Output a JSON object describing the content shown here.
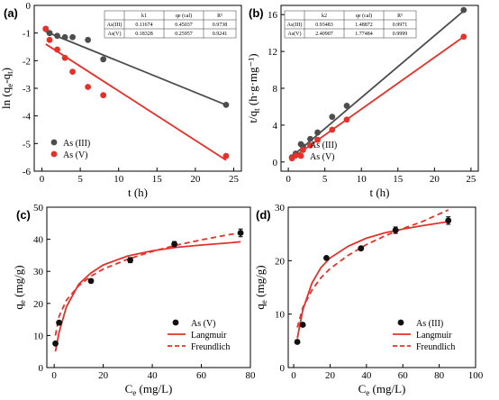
{
  "chart_data": [
    {
      "panel": "(a)",
      "type": "scatter",
      "xlabel_main": "t",
      "xlabel_unit": "(h)",
      "ylabel_main": "ln (q",
      "ylabel_sub1": "e",
      "ylabel_mid": "-q",
      "ylabel_sub2": "t",
      "ylabel_end": ")",
      "xlim": [
        -1,
        26
      ],
      "ylim": [
        -6,
        0
      ],
      "xticks": [
        0,
        5,
        10,
        15,
        20,
        25
      ],
      "yticks": [
        0,
        -1,
        -2,
        -3,
        -4,
        -5,
        -6
      ],
      "series": [
        {
          "name": "As (III)",
          "color": "#4d4d4d",
          "x": [
            0.5,
            1,
            2,
            3,
            4,
            6,
            8,
            24
          ],
          "y": [
            -0.85,
            -1.0,
            -1.1,
            -1.15,
            -1.15,
            -1.25,
            -1.95,
            -3.6
          ],
          "fit": {
            "x": [
              0.5,
              24
            ],
            "y": [
              -0.95,
              -3.6
            ]
          }
        },
        {
          "name": "As (V)",
          "color": "#e8302a",
          "x": [
            0.5,
            1,
            2,
            3,
            4,
            6,
            8,
            24
          ],
          "y": [
            -0.85,
            -1.25,
            -1.6,
            -1.9,
            -2.4,
            -2.95,
            -3.25,
            -5.45
          ],
          "fit": {
            "x": [
              0.5,
              24
            ],
            "y": [
              -1.4,
              -5.6
            ]
          }
        }
      ],
      "table": {
        "headers": [
          "",
          "k1",
          "qe (cal)",
          "R²"
        ],
        "rows": [
          [
            "As(III)",
            "0.11674",
            "0.45037",
            "0.9738"
          ],
          [
            "As(V)",
            "0.18328",
            "0.25957",
            "0.9241"
          ]
        ]
      }
    },
    {
      "panel": "(b)",
      "type": "scatter",
      "xlabel_main": "t",
      "xlabel_unit": "(h)",
      "ylabel_main": "t/q",
      "ylabel_sub1": "t",
      "ylabel_end": " (h·g·mg⁻¹)",
      "xlim": [
        -1,
        26
      ],
      "ylim": [
        -1,
        17
      ],
      "xticks": [
        0,
        5,
        10,
        15,
        20,
        25
      ],
      "yticks": [
        0,
        4,
        8,
        12,
        16
      ],
      "series": [
        {
          "name": "As (III)",
          "color": "#4d4d4d",
          "x": [
            0.5,
            1,
            2,
            3,
            4,
            6,
            8,
            24
          ],
          "y": [
            0.5,
            0.9,
            1.7,
            2.5,
            3.2,
            4.9,
            6.1,
            16.5
          ],
          "fit": {
            "x": [
              0.5,
              24
            ],
            "y": [
              0.6,
              16.4
            ]
          }
        },
        {
          "name": "As (V)",
          "color": "#e8302a",
          "x": [
            0.5,
            1,
            2,
            3,
            4,
            6,
            8,
            24
          ],
          "y": [
            0.4,
            0.7,
            1.3,
            1.8,
            2.4,
            3.5,
            4.6,
            13.6
          ],
          "fit": {
            "x": [
              0.5,
              24
            ],
            "y": [
              0.4,
              13.6
            ]
          }
        }
      ],
      "table": {
        "headers": [
          "",
          "k2",
          "qe (cal)",
          "R²"
        ],
        "rows": [
          [
            "As(III)",
            "0.93483",
            "1.48872",
            "0.9971"
          ],
          [
            "As(V)",
            "2.40907",
            "1.77484",
            "0.9999"
          ]
        ]
      }
    },
    {
      "panel": "(c)",
      "type": "scatter",
      "xlabel_main": "C",
      "xlabel_sub": "e",
      "xlabel_unit": " (mg/L)",
      "ylabel_main": "q",
      "ylabel_sub1": "e",
      "ylabel_end": " (mg/g)",
      "xlim": [
        -3,
        80
      ],
      "ylim": [
        0,
        50
      ],
      "xticks": [
        0,
        20,
        40,
        60,
        80
      ],
      "yticks": [
        0,
        10,
        20,
        30,
        40,
        50
      ],
      "points": {
        "name": "As (V)",
        "x": [
          0.5,
          2,
          15,
          31,
          49,
          76
        ],
        "y": [
          7.5,
          14,
          27,
          33.5,
          38.5,
          42
        ],
        "err": [
          0,
          0,
          0.6,
          0.8,
          0.8,
          1.2
        ]
      },
      "curves": [
        {
          "name": "Langmuir",
          "style": "solid",
          "color": "#e8302a",
          "x": [
            0.5,
            2,
            5,
            10,
            15,
            20,
            30,
            40,
            50,
            60,
            70,
            76
          ],
          "y": [
            5,
            11,
            19,
            26,
            29.5,
            32,
            34.8,
            36.4,
            37.5,
            38.2,
            38.8,
            39.2
          ]
        },
        {
          "name": "Freundlich",
          "style": "dashed",
          "color": "#e8302a",
          "x": [
            0.5,
            2,
            5,
            10,
            15,
            20,
            30,
            40,
            50,
            60,
            70,
            76
          ],
          "y": [
            10,
            16,
            21,
            25.5,
            28.5,
            30.7,
            33.8,
            36.2,
            38.2,
            39.8,
            41.3,
            42
          ]
        }
      ]
    },
    {
      "panel": "(d)",
      "type": "scatter",
      "xlabel_main": "C",
      "xlabel_sub": "e",
      "xlabel_unit": " (mg/L)",
      "ylabel_main": "q",
      "ylabel_sub1": "e",
      "ylabel_end": " (mg/g)",
      "xlim": [
        -3,
        100
      ],
      "ylim": [
        0,
        30
      ],
      "xticks": [
        0,
        20,
        40,
        60,
        80,
        100
      ],
      "yticks": [
        0,
        10,
        20,
        30
      ],
      "points": {
        "name": "As (III)",
        "x": [
          2,
          5,
          18,
          37,
          56,
          85
        ],
        "y": [
          4.8,
          8,
          20.5,
          22.3,
          25.7,
          27.5
        ],
        "err": [
          0,
          0,
          0,
          0.3,
          0.6,
          0.7
        ]
      },
      "curves": [
        {
          "name": "Langmuir",
          "style": "solid",
          "color": "#e8302a",
          "x": [
            2,
            5,
            10,
            15,
            20,
            30,
            40,
            50,
            60,
            70,
            85
          ],
          "y": [
            5.5,
            10.8,
            15.8,
            18.7,
            20.5,
            22.7,
            24.2,
            25.2,
            25.9,
            26.5,
            27.3
          ]
        },
        {
          "name": "Freundlich",
          "style": "dashed",
          "color": "#e8302a",
          "x": [
            2,
            5,
            10,
            15,
            20,
            30,
            40,
            50,
            60,
            70,
            85
          ],
          "y": [
            7.5,
            11.2,
            14.5,
            16.8,
            18.5,
            21.0,
            23.0,
            24.6,
            26.0,
            27.2,
            29.5
          ]
        }
      ]
    }
  ]
}
